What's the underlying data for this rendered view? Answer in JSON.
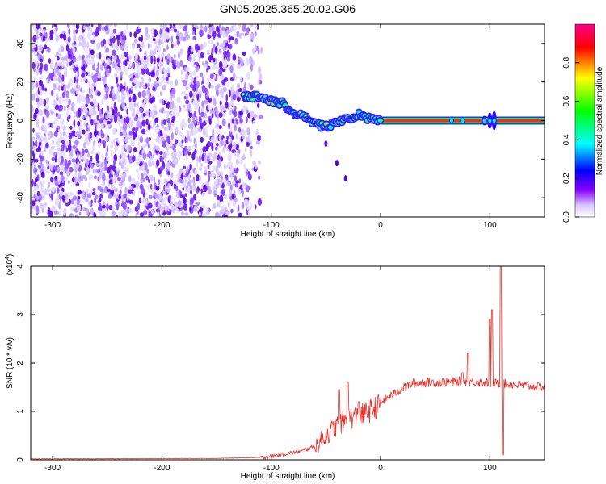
{
  "title": "GN05.2025.365.20.02.G06",
  "chart_data": [
    {
      "type": "heatmap",
      "xlabel": "Height of straight line (km)",
      "ylabel": "Frequency (Hz)",
      "xlim": [
        -320,
        150
      ],
      "ylim": [
        -50,
        50
      ],
      "x_ticks": [
        -300,
        -200,
        -100,
        0,
        100
      ],
      "y_ticks": [
        -40,
        -20,
        0,
        20,
        40
      ],
      "colorbar": {
        "label": "Normalized spectral amplitude",
        "range": [
          0,
          1
        ],
        "ticks": [
          0.0,
          0.2,
          0.4,
          0.6,
          0.8
        ],
        "colors": [
          "#ffffff",
          "#8800ff",
          "#0000ff",
          "#00ffff",
          "#00ff00",
          "#ffff00",
          "#ff0000",
          "#ff0088"
        ]
      },
      "noise_region": [
        -320,
        -108
      ],
      "ridge": [
        {
          "x": -122,
          "y": 13
        },
        {
          "x": -110,
          "y": 12
        },
        {
          "x": -100,
          "y": 10
        },
        {
          "x": -90,
          "y": 9
        },
        {
          "x": -80,
          "y": 4
        },
        {
          "x": -70,
          "y": 2
        },
        {
          "x": -60,
          "y": -2
        },
        {
          "x": -50,
          "y": -3
        },
        {
          "x": -40,
          "y": -1
        },
        {
          "x": -30,
          "y": 1
        },
        {
          "x": -20,
          "y": 3
        },
        {
          "x": -10,
          "y": 1
        },
        {
          "x": 0,
          "y": 0
        },
        {
          "x": 150,
          "y": 0
        }
      ],
      "tail": [
        {
          "x": -50,
          "y": -12
        },
        {
          "x": -40,
          "y": -22
        },
        {
          "x": -32,
          "y": -30
        }
      ]
    },
    {
      "type": "line",
      "xlabel": "Height of straight line (km)",
      "ylabel": "SNR (10 * v/v)",
      "y_multiplier": "(x10",
      "y_multiplier_exp": "4",
      "y_multiplier_close": ")",
      "xlim": [
        -320,
        150
      ],
      "ylim": [
        0,
        4
      ],
      "x_ticks": [
        -300,
        -200,
        -100,
        0,
        100
      ],
      "y_ticks": [
        0,
        1,
        2,
        3,
        4
      ],
      "series": [
        {
          "color": "#e8302a",
          "envelope": [
            {
              "x": -320,
              "y": 0.02
            },
            {
              "x": -150,
              "y": 0.03
            },
            {
              "x": -110,
              "y": 0.05
            },
            {
              "x": -90,
              "y": 0.12
            },
            {
              "x": -70,
              "y": 0.2
            },
            {
              "x": -60,
              "y": 0.3
            },
            {
              "x": -50,
              "y": 0.55
            },
            {
              "x": -40,
              "y": 0.75
            },
            {
              "x": -30,
              "y": 0.9
            },
            {
              "x": -20,
              "y": 0.95
            },
            {
              "x": -10,
              "y": 1.05
            },
            {
              "x": 0,
              "y": 1.2
            },
            {
              "x": 10,
              "y": 1.35
            },
            {
              "x": 20,
              "y": 1.5
            },
            {
              "x": 30,
              "y": 1.6
            },
            {
              "x": 40,
              "y": 1.62
            },
            {
              "x": 60,
              "y": 1.62
            },
            {
              "x": 80,
              "y": 1.65
            },
            {
              "x": 100,
              "y": 1.6
            },
            {
              "x": 112,
              "y": 1.6
            },
            {
              "x": 120,
              "y": 1.58
            },
            {
              "x": 150,
              "y": 1.52
            }
          ],
          "spikes": [
            {
              "x": -38,
              "y": 1.45
            },
            {
              "x": -30,
              "y": 1.6
            },
            {
              "x": -20,
              "y": 1.2
            },
            {
              "x": 75,
              "y": 1.8
            },
            {
              "x": 80,
              "y": 2.2
            },
            {
              "x": 100,
              "y": 2.9
            },
            {
              "x": 102,
              "y": 3.1
            },
            {
              "x": 110,
              "y": 4.0
            },
            {
              "x": 112,
              "y": 0.1
            }
          ]
        }
      ]
    }
  ]
}
